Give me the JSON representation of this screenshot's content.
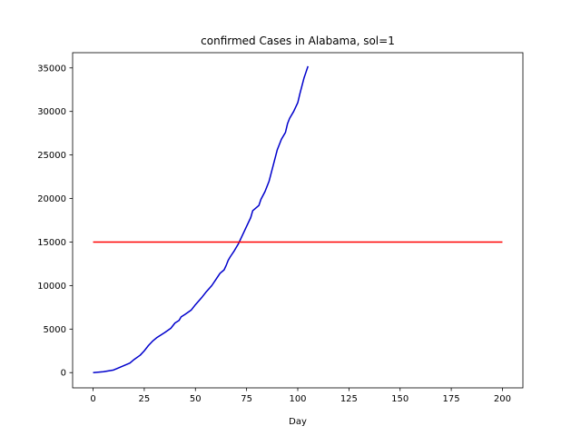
{
  "chart_data": {
    "type": "line",
    "title": "confirmed Cases in Alabama, sol=1",
    "xlabel": "Day",
    "ylabel": "",
    "xlim": [
      -10,
      210
    ],
    "ylim": [
      -1750,
      36750
    ],
    "xticks": [
      0,
      25,
      50,
      75,
      100,
      125,
      150,
      175,
      200
    ],
    "yticks": [
      0,
      5000,
      10000,
      15000,
      20000,
      25000,
      30000,
      35000
    ],
    "grid": false,
    "legend": "none",
    "series": [
      {
        "color": "#0000cc",
        "x": [
          0,
          5,
          10,
          12,
          15,
          18,
          20,
          23,
          25,
          27,
          29,
          31,
          33,
          35,
          38,
          40,
          42,
          43,
          45,
          48,
          50,
          53,
          55,
          58,
          60,
          62,
          64,
          65,
          66,
          67,
          69,
          71,
          73,
          75,
          77,
          78,
          79,
          81,
          82,
          84,
          86,
          88,
          90,
          92,
          94,
          95,
          96,
          98,
          100,
          101,
          102,
          103,
          104,
          105
        ],
        "y": [
          0,
          100,
          300,
          500,
          800,
          1100,
          1500,
          2000,
          2500,
          3100,
          3600,
          4000,
          4300,
          4600,
          5100,
          5700,
          6000,
          6400,
          6700,
          7200,
          7800,
          8600,
          9200,
          10000,
          10700,
          11400,
          11800,
          12300,
          12900,
          13300,
          14000,
          14800,
          15800,
          16800,
          17800,
          18600,
          18800,
          19200,
          19900,
          20800,
          22000,
          23800,
          25600,
          26800,
          27600,
          28600,
          29200,
          30000,
          31000,
          32000,
          32900,
          33800,
          34500,
          35200
        ]
      },
      {
        "color": "#ff0000",
        "x": [
          0,
          200
        ],
        "y": [
          15000,
          15000
        ]
      }
    ]
  }
}
